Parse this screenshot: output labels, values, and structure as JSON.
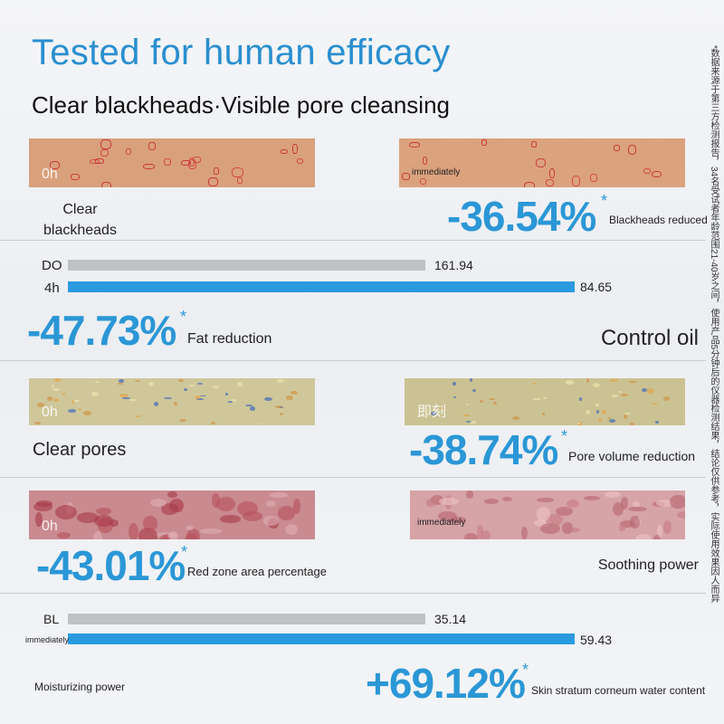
{
  "header": {
    "title": "Tested for human efficacy",
    "subtitle": "Clear blackheads·Visible pore cleansing"
  },
  "asterisk": "*",
  "footnote": "*数据来源于第三方检测报告，34名受试者年龄范围21-40岁之间，使用产品5分钟后的仪器检测结果，结论仅供参考，实际使用效果因人而异",
  "sections": [
    {
      "before_label": "0h",
      "after_label": "immediately",
      "caption": "Clear\nblackheads",
      "result": "-36.54%",
      "result_label": "Blackheads reduced"
    },
    {
      "bars": [
        {
          "label": "DO",
          "value": "161.94"
        },
        {
          "label": "4h",
          "value": "84.65"
        }
      ],
      "result": "-47.73%",
      "result_label": "Fat reduction",
      "caption": "Control oil"
    },
    {
      "before_label": "0h",
      "after_label": "即刻",
      "caption": "Clear pores",
      "result": "-38.74%",
      "result_label": "Pore volume reduction"
    },
    {
      "before_label": "0h",
      "after_label": "immediately",
      "result": "-43.01%",
      "result_label": "Red zone area percentage",
      "caption": "Soothing power"
    },
    {
      "bars": [
        {
          "label": "BL",
          "value": "35.14"
        },
        {
          "label": "immediately",
          "value": "59.43"
        }
      ],
      "caption": "Moisturizing power",
      "result": "+69.12%",
      "result_label": "Skin stratum corneum water content"
    }
  ]
}
